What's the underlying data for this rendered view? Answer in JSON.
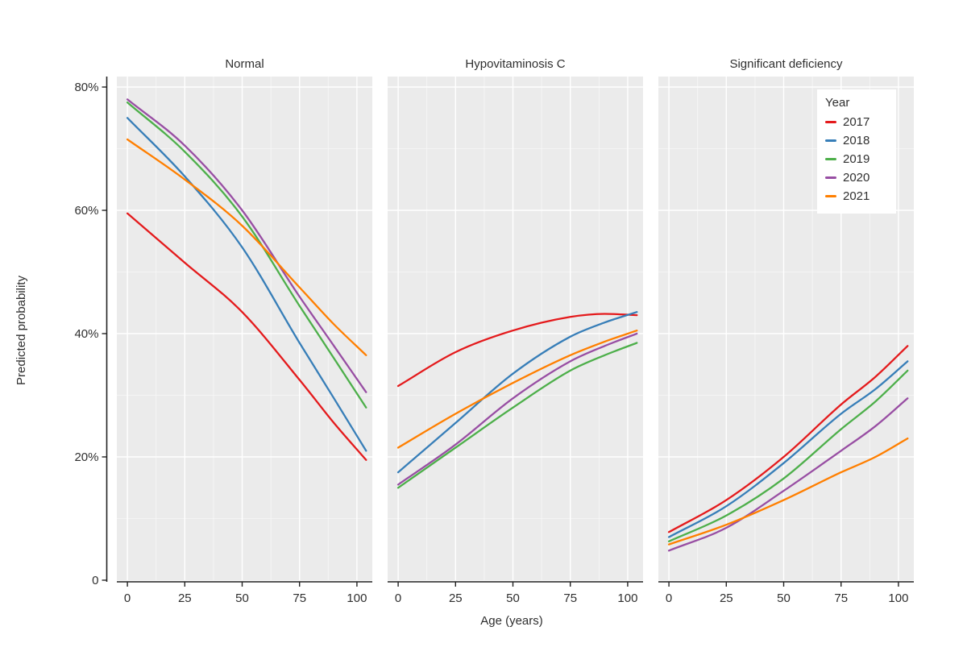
{
  "figure": {
    "background": "#ffffff",
    "panel_background": "#ebebeb",
    "gridline_color": "#ffffff",
    "axis_line_color": "#222222",
    "text_color": "#2f2f2f"
  },
  "chart_data": {
    "type": "line",
    "title": "",
    "facet_titles": [
      "Normal",
      "Hypovitaminosis C",
      "Significant deficiency"
    ],
    "x_label": "Age (years)",
    "y_label": "Predicted probability",
    "x": [
      0,
      25,
      50,
      75,
      90,
      104
    ],
    "x_ticks": [
      0,
      25,
      50,
      75,
      100
    ],
    "y_ticks": [
      {
        "v": 0,
        "label": "0"
      },
      {
        "v": 20,
        "label": "20%"
      },
      {
        "v": 40,
        "label": "40%"
      },
      {
        "v": 60,
        "label": "60%"
      },
      {
        "v": 80,
        "label": "80%"
      }
    ],
    "x_range": [
      -4.6,
      106.7
    ],
    "y_range": [
      0,
      81.7
    ],
    "grid": {
      "major": true,
      "minor": true
    },
    "legend": {
      "title": "Year",
      "position": "inside top-right of third facet",
      "items": [
        {
          "label": "2017",
          "color": "#e41a1c"
        },
        {
          "label": "2018",
          "color": "#377eb8"
        },
        {
          "label": "2019",
          "color": "#4daf4a"
        },
        {
          "label": "2020",
          "color": "#984ea3"
        },
        {
          "label": "2021",
          "color": "#ff7f00"
        }
      ]
    },
    "series_colors": {
      "2017": "#e41a1c",
      "2018": "#377eb8",
      "2019": "#4daf4a",
      "2020": "#984ea3",
      "2021": "#ff7f00"
    },
    "panels": [
      {
        "title": "Normal",
        "series": [
          {
            "name": "2017",
            "values": [
              59.5,
              51.5,
              43.5,
              32.5,
              25.5,
              19.5
            ]
          },
          {
            "name": "2018",
            "values": [
              75.0,
              65.5,
              54.0,
              38.5,
              29.5,
              21.0
            ]
          },
          {
            "name": "2019",
            "values": [
              77.5,
              69.5,
              59.0,
              44.5,
              36.0,
              28.0
            ]
          },
          {
            "name": "2020",
            "values": [
              78.0,
              70.5,
              60.0,
              46.0,
              38.0,
              30.5
            ]
          },
          {
            "name": "2021",
            "values": [
              71.5,
              65.0,
              57.5,
              47.5,
              41.5,
              36.5
            ]
          }
        ]
      },
      {
        "title": "Hypovitaminosis C",
        "series": [
          {
            "name": "2017",
            "values": [
              31.5,
              37.0,
              40.5,
              42.7,
              43.2,
              43.0
            ]
          },
          {
            "name": "2018",
            "values": [
              17.5,
              25.5,
              33.5,
              39.5,
              41.8,
              43.5
            ]
          },
          {
            "name": "2019",
            "values": [
              15.0,
              21.5,
              28.0,
              34.0,
              36.5,
              38.5
            ]
          },
          {
            "name": "2020",
            "values": [
              15.5,
              22.0,
              29.5,
              35.5,
              38.0,
              40.0
            ]
          },
          {
            "name": "2021",
            "values": [
              21.5,
              27.0,
              32.0,
              36.5,
              38.7,
              40.5
            ]
          }
        ]
      },
      {
        "title": "Significant deficiency",
        "series": [
          {
            "name": "2017",
            "values": [
              7.8,
              13.0,
              20.0,
              28.5,
              33.0,
              38.0
            ]
          },
          {
            "name": "2018",
            "values": [
              7.0,
              12.0,
              19.0,
              27.0,
              31.0,
              35.5
            ]
          },
          {
            "name": "2019",
            "values": [
              6.3,
              10.5,
              16.5,
              24.5,
              29.0,
              34.0
            ]
          },
          {
            "name": "2020",
            "values": [
              4.8,
              8.5,
              14.5,
              21.0,
              25.0,
              29.5
            ]
          },
          {
            "name": "2021",
            "values": [
              5.8,
              9.0,
              13.0,
              17.5,
              20.0,
              23.0
            ]
          }
        ]
      }
    ]
  }
}
